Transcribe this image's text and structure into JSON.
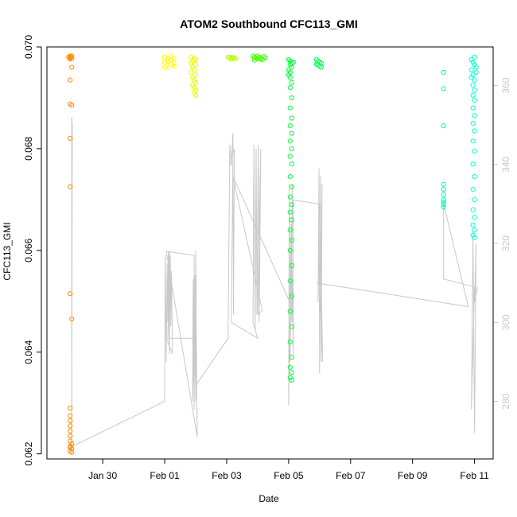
{
  "chart_data": {
    "type": "scatter",
    "title": "ATOM2 Southbound CFC113_GMI",
    "xlabel": "Date",
    "ylabel": "CFC113_GMI",
    "x_unit": "days (0 = Jan 30)",
    "xlim": [
      -1.8,
      12.6
    ],
    "ylim": [
      0.0619,
      0.07
    ],
    "y_ticks": [
      0.062,
      0.064,
      0.066,
      0.068,
      0.07
    ],
    "y_tick_labels": [
      "0.062",
      "0.064",
      "0.066",
      "0.068",
      "0.070"
    ],
    "x_ticks": [
      0,
      2,
      4,
      6,
      8,
      10,
      12
    ],
    "x_tick_labels": [
      "Jan 30",
      "Feb 01",
      "Feb 03",
      "Feb 05",
      "Feb 07",
      "Feb 09",
      "Feb 11"
    ],
    "right_axis": {
      "series_color": "#c8c8c8",
      "ylim": [
        265.4,
        369.8
      ],
      "ticks": [
        280,
        300,
        320,
        340,
        360
      ],
      "tick_labels": [
        "280",
        "300",
        "320",
        "340",
        "360"
      ]
    },
    "series": [
      {
        "color": "#ff8c00",
        "points": [
          [
            -1.05,
            0.06982
          ],
          [
            -1.05,
            0.0698
          ],
          [
            -1.05,
            0.06978
          ],
          [
            -1.05,
            0.06976
          ],
          [
            -1.0,
            0.06982
          ],
          [
            -1.0,
            0.06978
          ],
          [
            -1.1,
            0.0698
          ],
          [
            -1.0,
            0.0696
          ],
          [
            -1.05,
            0.06935
          ],
          [
            -1.05,
            0.06888
          ],
          [
            -1.0,
            0.06885
          ],
          [
            -1.05,
            0.0682
          ],
          [
            -1.05,
            0.06725
          ],
          [
            -1.05,
            0.06515
          ],
          [
            -1.0,
            0.06465
          ],
          [
            -1.05,
            0.0629
          ],
          [
            -1.05,
            0.06275
          ],
          [
            -1.05,
            0.06265
          ],
          [
            -1.05,
            0.06255
          ],
          [
            -1.05,
            0.06245
          ],
          [
            -1.05,
            0.06235
          ],
          [
            -1.05,
            0.06225
          ],
          [
            -1.0,
            0.0622
          ],
          [
            -1.05,
            0.06215
          ],
          [
            -1.05,
            0.06212
          ],
          [
            -1.0,
            0.0621
          ],
          [
            -1.05,
            0.06205
          ],
          [
            -1.0,
            0.06203
          ]
        ]
      },
      {
        "color": "#ffff00",
        "points": [
          [
            2.0,
            0.0696
          ],
          [
            2.1,
            0.0696
          ],
          [
            2.2,
            0.06965
          ],
          [
            2.3,
            0.06968
          ],
          [
            2.0,
            0.0697
          ],
          [
            2.1,
            0.06972
          ],
          [
            2.2,
            0.06975
          ],
          [
            2.3,
            0.06978
          ],
          [
            2.0,
            0.0698
          ],
          [
            2.2,
            0.06982
          ],
          [
            2.1,
            0.06978
          ],
          [
            2.3,
            0.06962
          ]
        ]
      },
      {
        "color": "#e6ff00",
        "points": [
          [
            2.85,
            0.0698
          ],
          [
            2.95,
            0.06978
          ],
          [
            3.0,
            0.06975
          ],
          [
            2.9,
            0.06972
          ],
          [
            2.85,
            0.06968
          ],
          [
            3.0,
            0.06965
          ],
          [
            2.9,
            0.0696
          ],
          [
            2.95,
            0.06955
          ],
          [
            2.85,
            0.0695
          ],
          [
            3.0,
            0.06945
          ],
          [
            2.9,
            0.0694
          ],
          [
            2.95,
            0.06935
          ],
          [
            3.0,
            0.0693
          ],
          [
            2.9,
            0.06925
          ],
          [
            2.95,
            0.0692
          ],
          [
            3.0,
            0.06915
          ],
          [
            2.95,
            0.0691
          ],
          [
            3.0,
            0.06905
          ]
        ]
      },
      {
        "color": "#b4ff00",
        "points": [
          [
            4.05,
            0.0698
          ],
          [
            4.1,
            0.06978
          ],
          [
            4.15,
            0.06976
          ],
          [
            4.2,
            0.06979
          ],
          [
            4.25,
            0.06977
          ],
          [
            4.3,
            0.06978
          ],
          [
            4.15,
            0.0698
          ]
        ]
      },
      {
        "color": "#44ff00",
        "points": [
          [
            4.85,
            0.06982
          ],
          [
            4.9,
            0.0698
          ],
          [
            4.95,
            0.06978
          ],
          [
            5.0,
            0.06976
          ],
          [
            5.05,
            0.0698
          ],
          [
            5.1,
            0.06978
          ],
          [
            5.15,
            0.06975
          ],
          [
            5.2,
            0.06981
          ],
          [
            4.9,
            0.06974
          ],
          [
            5.0,
            0.06982
          ],
          [
            5.1,
            0.06976
          ],
          [
            5.25,
            0.06978
          ]
        ]
      },
      {
        "color": "#00ff33",
        "points": [
          [
            6.0,
            0.06975
          ],
          [
            6.05,
            0.06972
          ],
          [
            6.1,
            0.06968
          ],
          [
            6.15,
            0.0697
          ],
          [
            6.05,
            0.06965
          ],
          [
            6.1,
            0.0696
          ],
          [
            6.0,
            0.06955
          ],
          [
            6.05,
            0.0695
          ],
          [
            6.0,
            0.06945
          ],
          [
            6.05,
            0.0694
          ],
          [
            6.1,
            0.0693
          ],
          [
            6.05,
            0.0692
          ],
          [
            6.1,
            0.069
          ],
          [
            6.05,
            0.0688
          ],
          [
            6.1,
            0.0686
          ],
          [
            6.05,
            0.06845
          ],
          [
            6.1,
            0.0683
          ],
          [
            6.05,
            0.06815
          ],
          [
            6.1,
            0.068
          ],
          [
            6.05,
            0.06785
          ],
          [
            6.1,
            0.0677
          ],
          [
            6.05,
            0.06745
          ],
          [
            6.1,
            0.06725
          ],
          [
            6.05,
            0.06705
          ],
          [
            6.1,
            0.0669
          ],
          [
            6.05,
            0.06675
          ],
          [
            6.1,
            0.0666
          ],
          [
            6.05,
            0.0664
          ],
          [
            6.1,
            0.0662
          ],
          [
            6.05,
            0.066
          ],
          [
            6.1,
            0.0657
          ],
          [
            6.05,
            0.0654
          ],
          [
            6.1,
            0.0651
          ],
          [
            6.05,
            0.0648
          ],
          [
            6.1,
            0.0645
          ],
          [
            6.05,
            0.0642
          ],
          [
            6.1,
            0.0639
          ],
          [
            6.05,
            0.0637
          ],
          [
            6.1,
            0.0636
          ],
          [
            6.05,
            0.0635
          ],
          [
            6.1,
            0.06345
          ]
        ]
      },
      {
        "color": "#00ff55",
        "points": [
          [
            6.9,
            0.06975
          ],
          [
            6.95,
            0.06972
          ],
          [
            7.0,
            0.0697
          ],
          [
            7.05,
            0.06968
          ],
          [
            6.95,
            0.06965
          ],
          [
            7.0,
            0.06962
          ],
          [
            7.05,
            0.0696
          ],
          [
            6.9,
            0.06966
          ]
        ]
      },
      {
        "color": "#00ffaa",
        "points": [
          [
            11.0,
            0.0695
          ],
          [
            11.0,
            0.06918
          ],
          [
            11.0,
            0.06845
          ],
          [
            11.0,
            0.0673
          ],
          [
            11.0,
            0.0672
          ],
          [
            11.0,
            0.0671
          ],
          [
            11.0,
            0.067
          ],
          [
            11.0,
            0.06695
          ],
          [
            11.0,
            0.0669
          ],
          [
            11.0,
            0.06685
          ]
        ]
      },
      {
        "color": "#00ffcc",
        "points": [
          [
            11.9,
            0.06975
          ],
          [
            11.95,
            0.0697
          ],
          [
            12.0,
            0.06965
          ],
          [
            12.05,
            0.0696
          ],
          [
            11.9,
            0.06955
          ],
          [
            11.95,
            0.06945
          ],
          [
            12.0,
            0.06935
          ],
          [
            11.95,
            0.06925
          ],
          [
            12.0,
            0.06915
          ],
          [
            11.95,
            0.06905
          ],
          [
            12.0,
            0.06895
          ],
          [
            11.95,
            0.0688
          ],
          [
            12.0,
            0.06865
          ],
          [
            11.95,
            0.0685
          ],
          [
            12.0,
            0.06835
          ],
          [
            11.95,
            0.06815
          ],
          [
            12.0,
            0.06795
          ],
          [
            11.95,
            0.0677
          ],
          [
            12.0,
            0.06745
          ],
          [
            11.95,
            0.0672
          ],
          [
            12.0,
            0.067
          ],
          [
            11.95,
            0.0668
          ],
          [
            12.0,
            0.06665
          ],
          [
            11.95,
            0.0665
          ],
          [
            12.0,
            0.0664
          ],
          [
            11.95,
            0.0663
          ],
          [
            12.0,
            0.06625
          ],
          [
            12.05,
            0.0695
          ],
          [
            12.0,
            0.0698
          ],
          [
            11.9,
            0.0694
          ]
        ]
      }
    ],
    "line_series": {
      "color": "#c8c8c8",
      "points": [
        [
          -1.05,
          268.5
        ],
        [
          -1.0,
          268.5
        ],
        [
          -0.98,
          350
        ],
        [
          -1.0,
          352
        ],
        [
          -1.0,
          268.5
        ],
        [
          2.0,
          280
        ],
        [
          2.0,
          283
        ],
        [
          2.02,
          317
        ],
        [
          2.05,
          290
        ],
        [
          2.08,
          315
        ],
        [
          2.1,
          300
        ],
        [
          2.12,
          318
        ],
        [
          2.15,
          292
        ],
        [
          2.18,
          317
        ],
        [
          2.2,
          299
        ],
        [
          2.22,
          313
        ],
        [
          2.25,
          292
        ],
        [
          2.1,
          295
        ],
        [
          2.15,
          318
        ],
        [
          2.15,
          296
        ],
        [
          2.95,
          296
        ],
        [
          2.9,
          280
        ],
        [
          2.92,
          311
        ],
        [
          2.95,
          278
        ],
        [
          2.98,
          312
        ],
        [
          3.0,
          280
        ],
        [
          3.02,
          309
        ],
        [
          3.0,
          318
        ],
        [
          3.05,
          271
        ],
        [
          2.05,
          318
        ],
        [
          2.95,
          317
        ],
        [
          2.95,
          296
        ],
        [
          3.0,
          284
        ],
        [
          4.05,
          296
        ],
        [
          4.05,
          300
        ],
        [
          4.1,
          345
        ],
        [
          4.15,
          340
        ],
        [
          4.2,
          348
        ],
        [
          4.22,
          302
        ],
        [
          4.25,
          344
        ],
        [
          4.1,
          340
        ],
        [
          4.2,
          340
        ],
        [
          4.15,
          300
        ],
        [
          5.0,
          296
        ],
        [
          4.85,
          300
        ],
        [
          4.88,
          345
        ],
        [
          4.92,
          298
        ],
        [
          4.95,
          344
        ],
        [
          4.98,
          302
        ],
        [
          5.02,
          345
        ],
        [
          5.05,
          300
        ],
        [
          5.1,
          344
        ],
        [
          5.0,
          302
        ],
        [
          5.15,
          303
        ],
        [
          4.2,
          337
        ],
        [
          6.05,
          305
        ],
        [
          6.0,
          279
        ],
        [
          6.02,
          335
        ],
        [
          6.05,
          290
        ],
        [
          6.08,
          325
        ],
        [
          6.1,
          300
        ],
        [
          6.12,
          335
        ],
        [
          6.1,
          320
        ],
        [
          6.15,
          292
        ],
        [
          6.15,
          331
        ],
        [
          7.0,
          330
        ],
        [
          6.95,
          305
        ],
        [
          6.98,
          339
        ],
        [
          7.0,
          287
        ],
        [
          7.03,
          337
        ],
        [
          7.05,
          290
        ],
        [
          7.08,
          335
        ],
        [
          7.05,
          310
        ],
        [
          7.1,
          290
        ],
        [
          7.0,
          310
        ],
        [
          6.9,
          310
        ],
        [
          11.8,
          304
        ],
        [
          11.0,
          330
        ],
        [
          11.0,
          313
        ],
        [
          11.0,
          311
        ],
        [
          12.0,
          309
        ],
        [
          11.9,
          278
        ],
        [
          11.95,
          323
        ],
        [
          12.0,
          272
        ],
        [
          12.05,
          320
        ],
        [
          12.0,
          305
        ],
        [
          12.1,
          309
        ]
      ]
    }
  }
}
